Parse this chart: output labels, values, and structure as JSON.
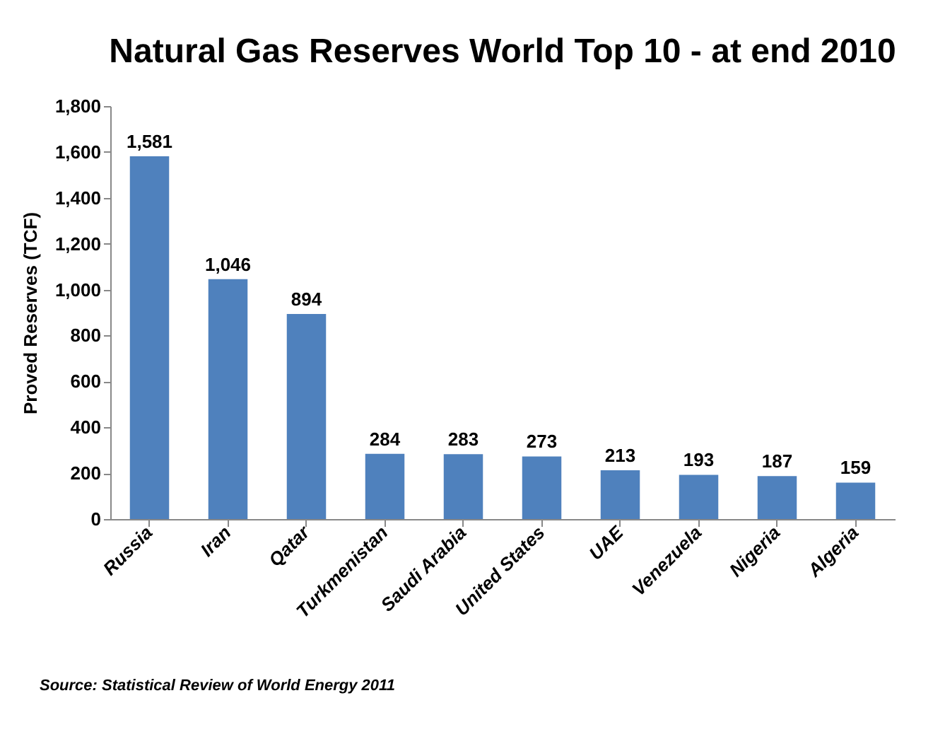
{
  "chart_data": {
    "type": "bar",
    "title": "Natural Gas Reserves World Top 10 - at end 2010",
    "ylabel": "Proved Reserves (TCF)",
    "categories": [
      "Russia",
      "Iran",
      "Qatar",
      "Turkmenistan",
      "Saudi Arabia",
      "United States",
      "UAE",
      "Venezuela",
      "Nigeria",
      "Algeria"
    ],
    "values": [
      1581,
      1046,
      894,
      284,
      283,
      273,
      213,
      193,
      187,
      159
    ],
    "color": "#4f81bd",
    "ylim": [
      0,
      1800
    ],
    "yticks": [
      {
        "value": 0,
        "label": "0"
      },
      {
        "value": 200,
        "label": "200"
      },
      {
        "value": 400,
        "label": "400"
      },
      {
        "value": 600,
        "label": "600"
      },
      {
        "value": 800,
        "label": "800"
      },
      {
        "value": 1000,
        "label": "1,000"
      },
      {
        "value": 1200,
        "label": "1,200"
      },
      {
        "value": 1400,
        "label": "1,400"
      },
      {
        "value": 1600,
        "label": "1,600"
      },
      {
        "value": 1800,
        "label": "1,800"
      }
    ],
    "value_labels": [
      "1,581",
      "1,046",
      "894",
      "284",
      "283",
      "273",
      "213",
      "193",
      "187",
      "159"
    ],
    "grid": false,
    "annotations": [
      "Source: Statistical Review of World Energy 2011"
    ]
  }
}
